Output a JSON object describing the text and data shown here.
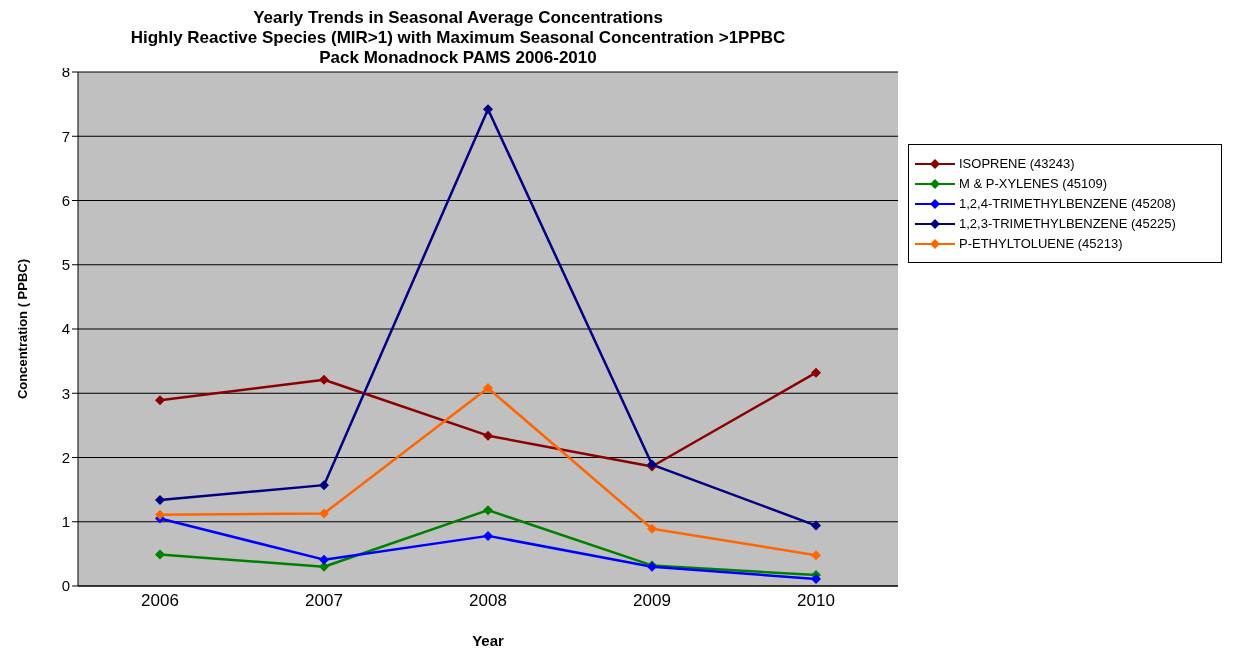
{
  "chart_data": {
    "type": "line",
    "title": "Yearly Trends in Seasonal Average Concentrations",
    "subtitle": "Highly Reactive Species (MIR>1) with Maximum Seasonal Concentration >1PPBC\nPack Monadnock PAMS 2006-2010",
    "xlabel": "Year",
    "ylabel": "Concentration ( PPBC)",
    "categories": [
      "2006",
      "2007",
      "2008",
      "2009",
      "2010"
    ],
    "series": [
      {
        "name": "ISOPRENE (43243)",
        "color": "#8b0000",
        "values": [
          2.89,
          3.21,
          2.34,
          1.86,
          3.32
        ]
      },
      {
        "name": "M & P-XYLENES (45109)",
        "color": "#008000",
        "values": [
          0.49,
          0.3,
          1.18,
          0.32,
          0.17
        ]
      },
      {
        "name": "1,2,4-TRIMETHYLBENZENE (45208)",
        "color": "#0000ff",
        "values": [
          1.05,
          0.41,
          0.78,
          0.3,
          0.11
        ]
      },
      {
        "name": "1,2,3-TRIMETHYLBENZENE (45225)",
        "color": "#000080",
        "values": [
          1.34,
          1.57,
          7.42,
          1.89,
          0.94
        ]
      },
      {
        "name": "P-ETHYLTOLUENE (45213)",
        "color": "#ff6600",
        "values": [
          1.11,
          1.13,
          3.08,
          0.89,
          0.48
        ]
      }
    ],
    "ylim": [
      0,
      8
    ],
    "yticks": [
      0,
      1,
      2,
      3,
      4,
      5,
      6,
      7,
      8
    ],
    "grid": "y",
    "legend": "right",
    "marker": "diamond",
    "line_style": "solid"
  }
}
